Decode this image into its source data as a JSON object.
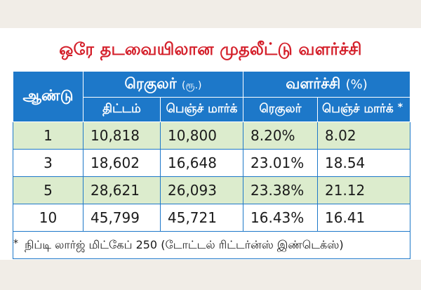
{
  "title": "ஒரே தடவையிலான முதலீட்டு வளர்ச்சி",
  "table": {
    "year_header": "ஆண்டு",
    "regular_header": "ரெகுலர்",
    "regular_unit": "(ரூ.)",
    "growth_header": "வளர்ச்சி",
    "growth_unit": "(%)",
    "sub_headers": [
      "திட்டம்",
      "பெஞ்ச் மார்க்",
      "ரெகுலர்",
      "பெஞ்ச் மார்க்"
    ],
    "sub_header_star": "*",
    "rows": [
      {
        "year": "1",
        "plan": "10,818",
        "bench": "10,800",
        "reg_pct": "8.20%",
        "bench_pct": "8.02"
      },
      {
        "year": "3",
        "plan": "18,602",
        "bench": "16,648",
        "reg_pct": "23.01%",
        "bench_pct": "18.54"
      },
      {
        "year": "5",
        "plan": "28,621",
        "bench": "26,093",
        "reg_pct": "23.38%",
        "bench_pct": "21.12"
      },
      {
        "year": "10",
        "plan": "45,799",
        "bench": "45,721",
        "reg_pct": "16.43%",
        "bench_pct": "16.41"
      }
    ],
    "footnote_star": "*",
    "footnote": "நிப்டி லார்ஜ் மிட்கேப் 250 (டோட்டல் ரிட்டர்ன்ஸ் இண்டெக்ஸ்)"
  },
  "colors": {
    "title": "#d41f2a",
    "header_bg": "#1d78c9",
    "row_alt": "#dceccd"
  }
}
